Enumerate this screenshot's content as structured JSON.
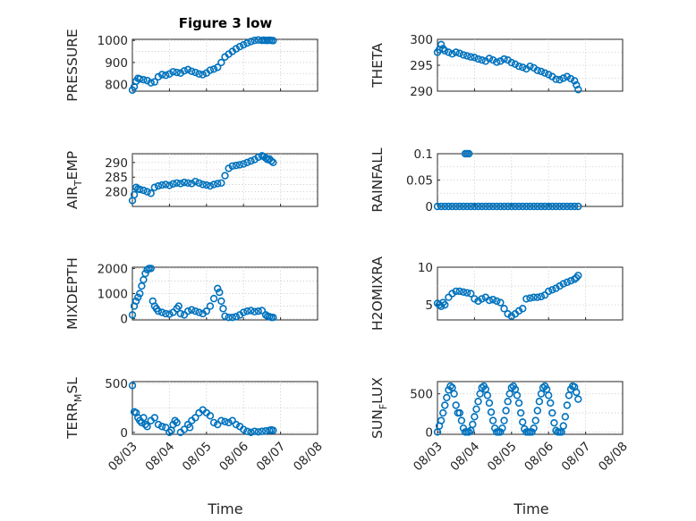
{
  "figure": {
    "title": "Figure 3 low",
    "marker_color": "#0072bd"
  },
  "chart_data": [
    {
      "type": "scatter",
      "ylabel": "PRESSURE",
      "ylim": [
        770,
        1005
      ],
      "yticks": [
        "800",
        "900",
        "1000"
      ],
      "xlim": [
        0,
        5
      ],
      "xticks": [
        "08/03",
        "08/04",
        "08/05",
        "08/06",
        "08/07",
        "08/08"
      ],
      "xticklabels_visible": false,
      "grid": true,
      "series": [
        {
          "x": [
            0.0,
            0.05,
            0.1,
            0.15,
            0.2,
            0.3,
            0.4,
            0.5,
            0.6,
            0.7,
            0.8,
            0.9,
            1.0,
            1.1,
            1.2,
            1.3,
            1.4,
            1.5,
            1.6,
            1.7,
            1.8,
            1.9,
            2.0,
            2.1,
            2.2,
            2.3,
            2.4,
            2.5,
            2.6,
            2.7,
            2.8,
            2.9,
            3.0,
            3.1,
            3.2,
            3.3,
            3.4,
            3.5,
            3.55,
            3.6,
            3.65,
            3.7,
            3.75,
            3.8
          ],
          "y": [
            775,
            790,
            815,
            828,
            825,
            822,
            818,
            808,
            812,
            835,
            845,
            842,
            848,
            858,
            855,
            852,
            862,
            868,
            860,
            855,
            848,
            845,
            852,
            865,
            870,
            878,
            900,
            925,
            938,
            950,
            962,
            972,
            980,
            988,
            995,
            1000,
            1002,
            1000,
            1001,
            1000,
            1000,
            1001,
            1000,
            999
          ]
        }
      ]
    },
    {
      "type": "scatter",
      "ylabel": "THETA",
      "ylim": [
        290,
        300
      ],
      "yticks": [
        "290",
        "295",
        "300"
      ],
      "xlim": [
        0,
        5
      ],
      "xticks": [
        "08/03",
        "08/04",
        "08/05",
        "08/06",
        "08/07",
        "08/08"
      ],
      "xticklabels_visible": false,
      "grid": true,
      "series": [
        {
          "x": [
            0.0,
            0.05,
            0.1,
            0.15,
            0.2,
            0.3,
            0.4,
            0.5,
            0.6,
            0.7,
            0.8,
            0.9,
            1.0,
            1.1,
            1.2,
            1.3,
            1.4,
            1.5,
            1.6,
            1.7,
            1.8,
            1.9,
            2.0,
            2.1,
            2.2,
            2.3,
            2.4,
            2.5,
            2.6,
            2.7,
            2.8,
            2.9,
            3.0,
            3.1,
            3.2,
            3.3,
            3.4,
            3.5,
            3.6,
            3.7,
            3.75,
            3.8
          ],
          "y": [
            297.5,
            298.0,
            299.0,
            298.2,
            297.8,
            297.5,
            297.2,
            297.5,
            297.3,
            297.0,
            296.8,
            296.6,
            296.5,
            296.2,
            296.0,
            295.8,
            296.3,
            296.0,
            295.6,
            295.8,
            296.2,
            296.0,
            295.5,
            295.2,
            294.8,
            294.6,
            294.3,
            294.8,
            294.5,
            294.0,
            293.8,
            293.5,
            293.2,
            292.8,
            292.3,
            292.2,
            292.5,
            292.8,
            292.4,
            292.0,
            291.2,
            290.3
          ]
        }
      ]
    },
    {
      "type": "scatter",
      "ylabel": "AIR_TEMP",
      "ylim": [
        275,
        293
      ],
      "yticks": [
        "280",
        "285",
        "290"
      ],
      "xlim": [
        0,
        5
      ],
      "xticks": [
        "08/03",
        "08/04",
        "08/05",
        "08/06",
        "08/07",
        "08/08"
      ],
      "xticklabels_visible": false,
      "grid": true,
      "series": [
        {
          "x": [
            0.0,
            0.05,
            0.1,
            0.15,
            0.2,
            0.3,
            0.4,
            0.5,
            0.6,
            0.7,
            0.8,
            0.9,
            1.0,
            1.1,
            1.2,
            1.3,
            1.4,
            1.5,
            1.6,
            1.7,
            1.8,
            1.9,
            2.0,
            2.1,
            2.2,
            2.3,
            2.4,
            2.5,
            2.6,
            2.7,
            2.8,
            2.9,
            3.0,
            3.1,
            3.2,
            3.3,
            3.4,
            3.5,
            3.55,
            3.6,
            3.65,
            3.7,
            3.75,
            3.8
          ],
          "y": [
            277.0,
            279.0,
            281.5,
            281.0,
            280.8,
            280.5,
            280.0,
            279.5,
            281.5,
            282.0,
            282.3,
            282.5,
            282.2,
            282.7,
            283.0,
            282.8,
            283.2,
            283.0,
            282.8,
            283.5,
            283.0,
            282.5,
            282.3,
            282.0,
            282.5,
            282.8,
            283.0,
            285.5,
            288.0,
            288.8,
            289.0,
            289.2,
            289.5,
            290.0,
            290.5,
            291.0,
            291.8,
            292.3,
            292.0,
            291.5,
            291.0,
            291.2,
            290.5,
            290.0
          ]
        }
      ]
    },
    {
      "type": "scatter",
      "ylabel": "RAINFALL",
      "ylim": [
        0,
        0.1
      ],
      "yticks": [
        "0",
        "0.05",
        "0.1"
      ],
      "xlim": [
        0,
        5
      ],
      "xticks": [
        "08/03",
        "08/04",
        "08/05",
        "08/06",
        "08/07",
        "08/08"
      ],
      "xticklabels_visible": false,
      "grid": true,
      "series": [
        {
          "x": [
            0.0,
            0.1,
            0.2,
            0.3,
            0.4,
            0.5,
            0.6,
            0.7,
            0.8,
            0.9,
            1.0,
            1.1,
            1.2,
            1.3,
            1.4,
            1.5,
            1.6,
            1.7,
            1.8,
            1.9,
            2.0,
            2.1,
            2.2,
            2.3,
            2.4,
            2.5,
            2.6,
            2.7,
            2.8,
            2.9,
            3.0,
            3.1,
            3.2,
            3.3,
            3.4,
            3.5,
            3.6,
            3.7,
            3.8,
            0.75,
            0.8,
            0.85
          ],
          "y": [
            0,
            0,
            0,
            0,
            0,
            0,
            0,
            0,
            0,
            0,
            0,
            0,
            0,
            0,
            0,
            0,
            0,
            0,
            0,
            0,
            0,
            0,
            0,
            0,
            0,
            0,
            0,
            0,
            0,
            0,
            0,
            0,
            0,
            0,
            0,
            0,
            0,
            0,
            0,
            0.1,
            0.1,
            0.1
          ]
        }
      ]
    },
    {
      "type": "scatter",
      "ylabel": "MIXDEPTH",
      "ylim": [
        -50,
        2050
      ],
      "yticks": [
        "0",
        "1000",
        "2000"
      ],
      "xlim": [
        0,
        5
      ],
      "xticks": [
        "08/03",
        "08/04",
        "08/05",
        "08/06",
        "08/07",
        "08/08"
      ],
      "xticklabels_visible": false,
      "grid": true,
      "series": [
        {
          "x": [
            0.0,
            0.05,
            0.1,
            0.15,
            0.2,
            0.25,
            0.3,
            0.35,
            0.4,
            0.45,
            0.5,
            0.55,
            0.6,
            0.65,
            0.7,
            0.8,
            0.9,
            1.0,
            1.1,
            1.2,
            1.25,
            1.3,
            1.4,
            1.5,
            1.6,
            1.7,
            1.8,
            1.9,
            2.0,
            2.1,
            2.2,
            2.3,
            2.35,
            2.4,
            2.45,
            2.5,
            2.6,
            2.7,
            2.8,
            2.9,
            3.0,
            3.1,
            3.2,
            3.3,
            3.4,
            3.5,
            3.6,
            3.65,
            3.7,
            3.75,
            3.8
          ],
          "y": [
            150,
            500,
            700,
            850,
            1000,
            1300,
            1550,
            1800,
            1950,
            2000,
            2000,
            700,
            500,
            400,
            300,
            250,
            200,
            180,
            250,
            400,
            500,
            200,
            150,
            300,
            350,
            300,
            250,
            200,
            300,
            500,
            800,
            1200,
            1050,
            700,
            400,
            100,
            50,
            50,
            80,
            150,
            250,
            300,
            320,
            280,
            300,
            320,
            150,
            100,
            80,
            50,
            50
          ]
        }
      ]
    },
    {
      "type": "scatter",
      "ylabel": "H2OMIXRA",
      "ylim": [
        3,
        10
      ],
      "yticks": [
        "5",
        "10"
      ],
      "xlim": [
        0,
        5
      ],
      "xticks": [
        "08/03",
        "08/04",
        "08/05",
        "08/06",
        "08/07",
        "08/08"
      ],
      "xticklabels_visible": false,
      "grid": true,
      "series": [
        {
          "x": [
            0.0,
            0.05,
            0.1,
            0.15,
            0.2,
            0.3,
            0.4,
            0.5,
            0.6,
            0.7,
            0.8,
            0.9,
            1.0,
            1.1,
            1.2,
            1.3,
            1.4,
            1.5,
            1.6,
            1.7,
            1.8,
            1.9,
            2.0,
            2.1,
            2.2,
            2.3,
            2.4,
            2.5,
            2.6,
            2.7,
            2.8,
            2.9,
            3.0,
            3.1,
            3.2,
            3.3,
            3.4,
            3.5,
            3.6,
            3.7,
            3.75,
            3.8
          ],
          "y": [
            5.2,
            5.0,
            4.8,
            5.3,
            5.0,
            6.0,
            6.5,
            6.8,
            6.8,
            6.7,
            6.6,
            6.5,
            5.8,
            5.5,
            5.8,
            6.0,
            5.6,
            5.7,
            5.5,
            5.3,
            4.5,
            3.8,
            3.5,
            3.8,
            4.2,
            4.5,
            5.8,
            5.9,
            6.0,
            6.0,
            6.1,
            6.3,
            6.8,
            7.0,
            7.2,
            7.5,
            7.8,
            8.0,
            8.2,
            8.4,
            8.6,
            8.9
          ]
        }
      ]
    },
    {
      "type": "scatter",
      "ylabel": "TERR_MSL",
      "ylim": [
        -20,
        520
      ],
      "yticks": [
        "0",
        "500"
      ],
      "xlim": [
        0,
        5
      ],
      "xticks": [
        "08/03",
        "08/04",
        "08/05",
        "08/06",
        "08/07",
        "08/08"
      ],
      "xticklabels_visible": true,
      "grid": true,
      "series": [
        {
          "x": [
            0.0,
            0.05,
            0.1,
            0.15,
            0.2,
            0.25,
            0.3,
            0.35,
            0.4,
            0.5,
            0.6,
            0.7,
            0.8,
            0.9,
            1.0,
            1.05,
            1.1,
            1.15,
            1.2,
            1.3,
            1.4,
            1.5,
            1.55,
            1.6,
            1.7,
            1.8,
            1.9,
            2.0,
            2.1,
            2.2,
            2.3,
            2.4,
            2.5,
            2.6,
            2.7,
            2.8,
            2.9,
            3.0,
            3.1,
            3.2,
            3.3,
            3.4,
            3.5,
            3.6,
            3.7,
            3.75,
            3.8
          ],
          "y": [
            480,
            210,
            200,
            150,
            120,
            100,
            150,
            80,
            60,
            120,
            150,
            80,
            60,
            50,
            0,
            20,
            80,
            120,
            100,
            0,
            30,
            80,
            50,
            120,
            150,
            200,
            230,
            200,
            170,
            100,
            80,
            120,
            110,
            100,
            120,
            80,
            60,
            30,
            10,
            0,
            10,
            5,
            10,
            15,
            20,
            25,
            20
          ]
        }
      ]
    },
    {
      "type": "scatter",
      "ylabel": "SUN_FLUX",
      "ylim": [
        -30,
        660
      ],
      "yticks": [
        "0",
        "500"
      ],
      "xlim": [
        0,
        5
      ],
      "xticks": [
        "08/03",
        "08/04",
        "08/05",
        "08/06",
        "08/07",
        "08/08"
      ],
      "xticklabels_visible": true,
      "grid": true,
      "series": [
        {
          "x": [
            0.0,
            0.05,
            0.1,
            0.15,
            0.2,
            0.25,
            0.3,
            0.35,
            0.4,
            0.45,
            0.5,
            0.55,
            0.6,
            0.65,
            0.7,
            0.75,
            0.8,
            0.85,
            0.9,
            0.95,
            1.0,
            1.05,
            1.1,
            1.15,
            1.2,
            1.25,
            1.3,
            1.35,
            1.4,
            1.45,
            1.5,
            1.55,
            1.6,
            1.65,
            1.7,
            1.75,
            1.8,
            1.85,
            1.9,
            1.95,
            2.0,
            2.05,
            2.1,
            2.15,
            2.2,
            2.25,
            2.3,
            2.35,
            2.4,
            2.45,
            2.5,
            2.55,
            2.6,
            2.65,
            2.7,
            2.75,
            2.8,
            2.85,
            2.9,
            2.95,
            3.0,
            3.05,
            3.1,
            3.15,
            3.2,
            3.25,
            3.3,
            3.35,
            3.4,
            3.45,
            3.5,
            3.55,
            3.6,
            3.65,
            3.7,
            3.75,
            3.8
          ],
          "y": [
            0,
            80,
            150,
            250,
            350,
            450,
            550,
            600,
            580,
            500,
            350,
            250,
            250,
            150,
            50,
            0,
            0,
            0,
            20,
            100,
            200,
            300,
            400,
            500,
            580,
            600,
            560,
            480,
            380,
            260,
            150,
            50,
            0,
            0,
            0,
            50,
            150,
            280,
            400,
            500,
            580,
            600,
            560,
            480,
            380,
            250,
            130,
            40,
            0,
            0,
            0,
            0,
            50,
            150,
            280,
            400,
            500,
            580,
            600,
            560,
            480,
            380,
            250,
            120,
            20,
            0,
            0,
            0,
            80,
            200,
            350,
            480,
            560,
            600,
            590,
            520,
            430
          ]
        }
      ]
    }
  ],
  "xaxis_label": "Time"
}
